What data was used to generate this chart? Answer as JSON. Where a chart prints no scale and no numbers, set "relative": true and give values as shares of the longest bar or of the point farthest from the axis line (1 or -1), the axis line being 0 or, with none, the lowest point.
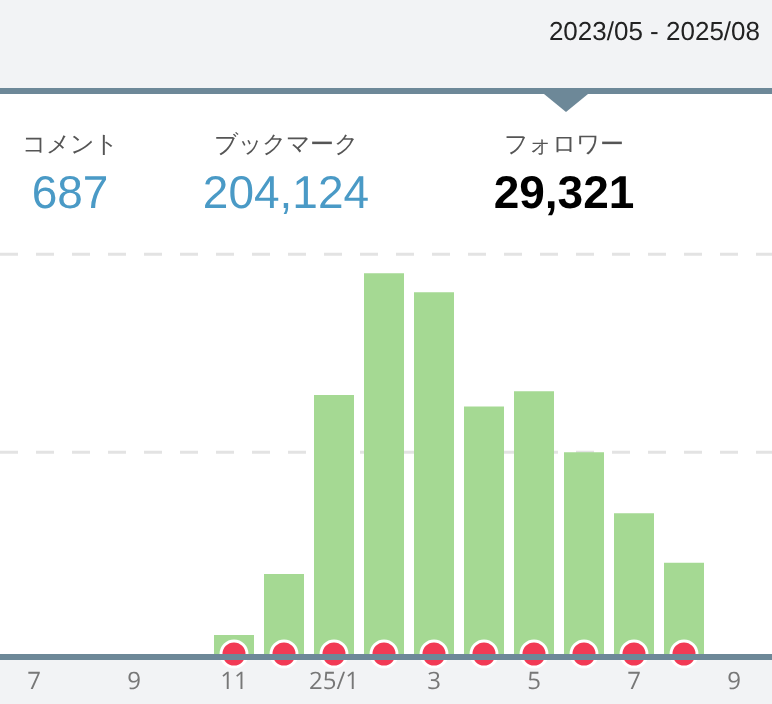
{
  "chart_data": {
    "type": "bar",
    "relative": true,
    "legend": false,
    "ref_lines": [
      {
        "axis": "y",
        "value": 0.53,
        "color": "#e3e3e3",
        "line_style": "dashed"
      },
      {
        "axis": "y",
        "value": 1.05,
        "color": "#e3e3e3",
        "line_style": "dashed"
      }
    ],
    "annotations": [
      "2023/05 - 2025/08",
      "コメント",
      "687",
      "ブックマーク",
      "204,124",
      "フォロワー",
      "29,321"
    ],
    "categories": [
      "7",
      null,
      "9",
      null,
      "11",
      null,
      "25/1",
      null,
      "3",
      null,
      "5",
      null,
      "7",
      null,
      "9"
    ],
    "series": [
      {
        "color": "#a5d993",
        "values": [
          0,
          0,
          0,
          0,
          0.05,
          0.21,
          0.68,
          1,
          0.95,
          0.65,
          0.69,
          0.53,
          0.37,
          0.24,
          0
        ]
      },
      {
        "type": "scatter",
        "color": "#f23a55",
        "marker": "circle",
        "values": [
          null,
          null,
          null,
          null,
          0,
          0,
          0,
          0,
          0,
          0,
          0,
          0,
          0,
          0,
          null
        ]
      }
    ]
  }
}
